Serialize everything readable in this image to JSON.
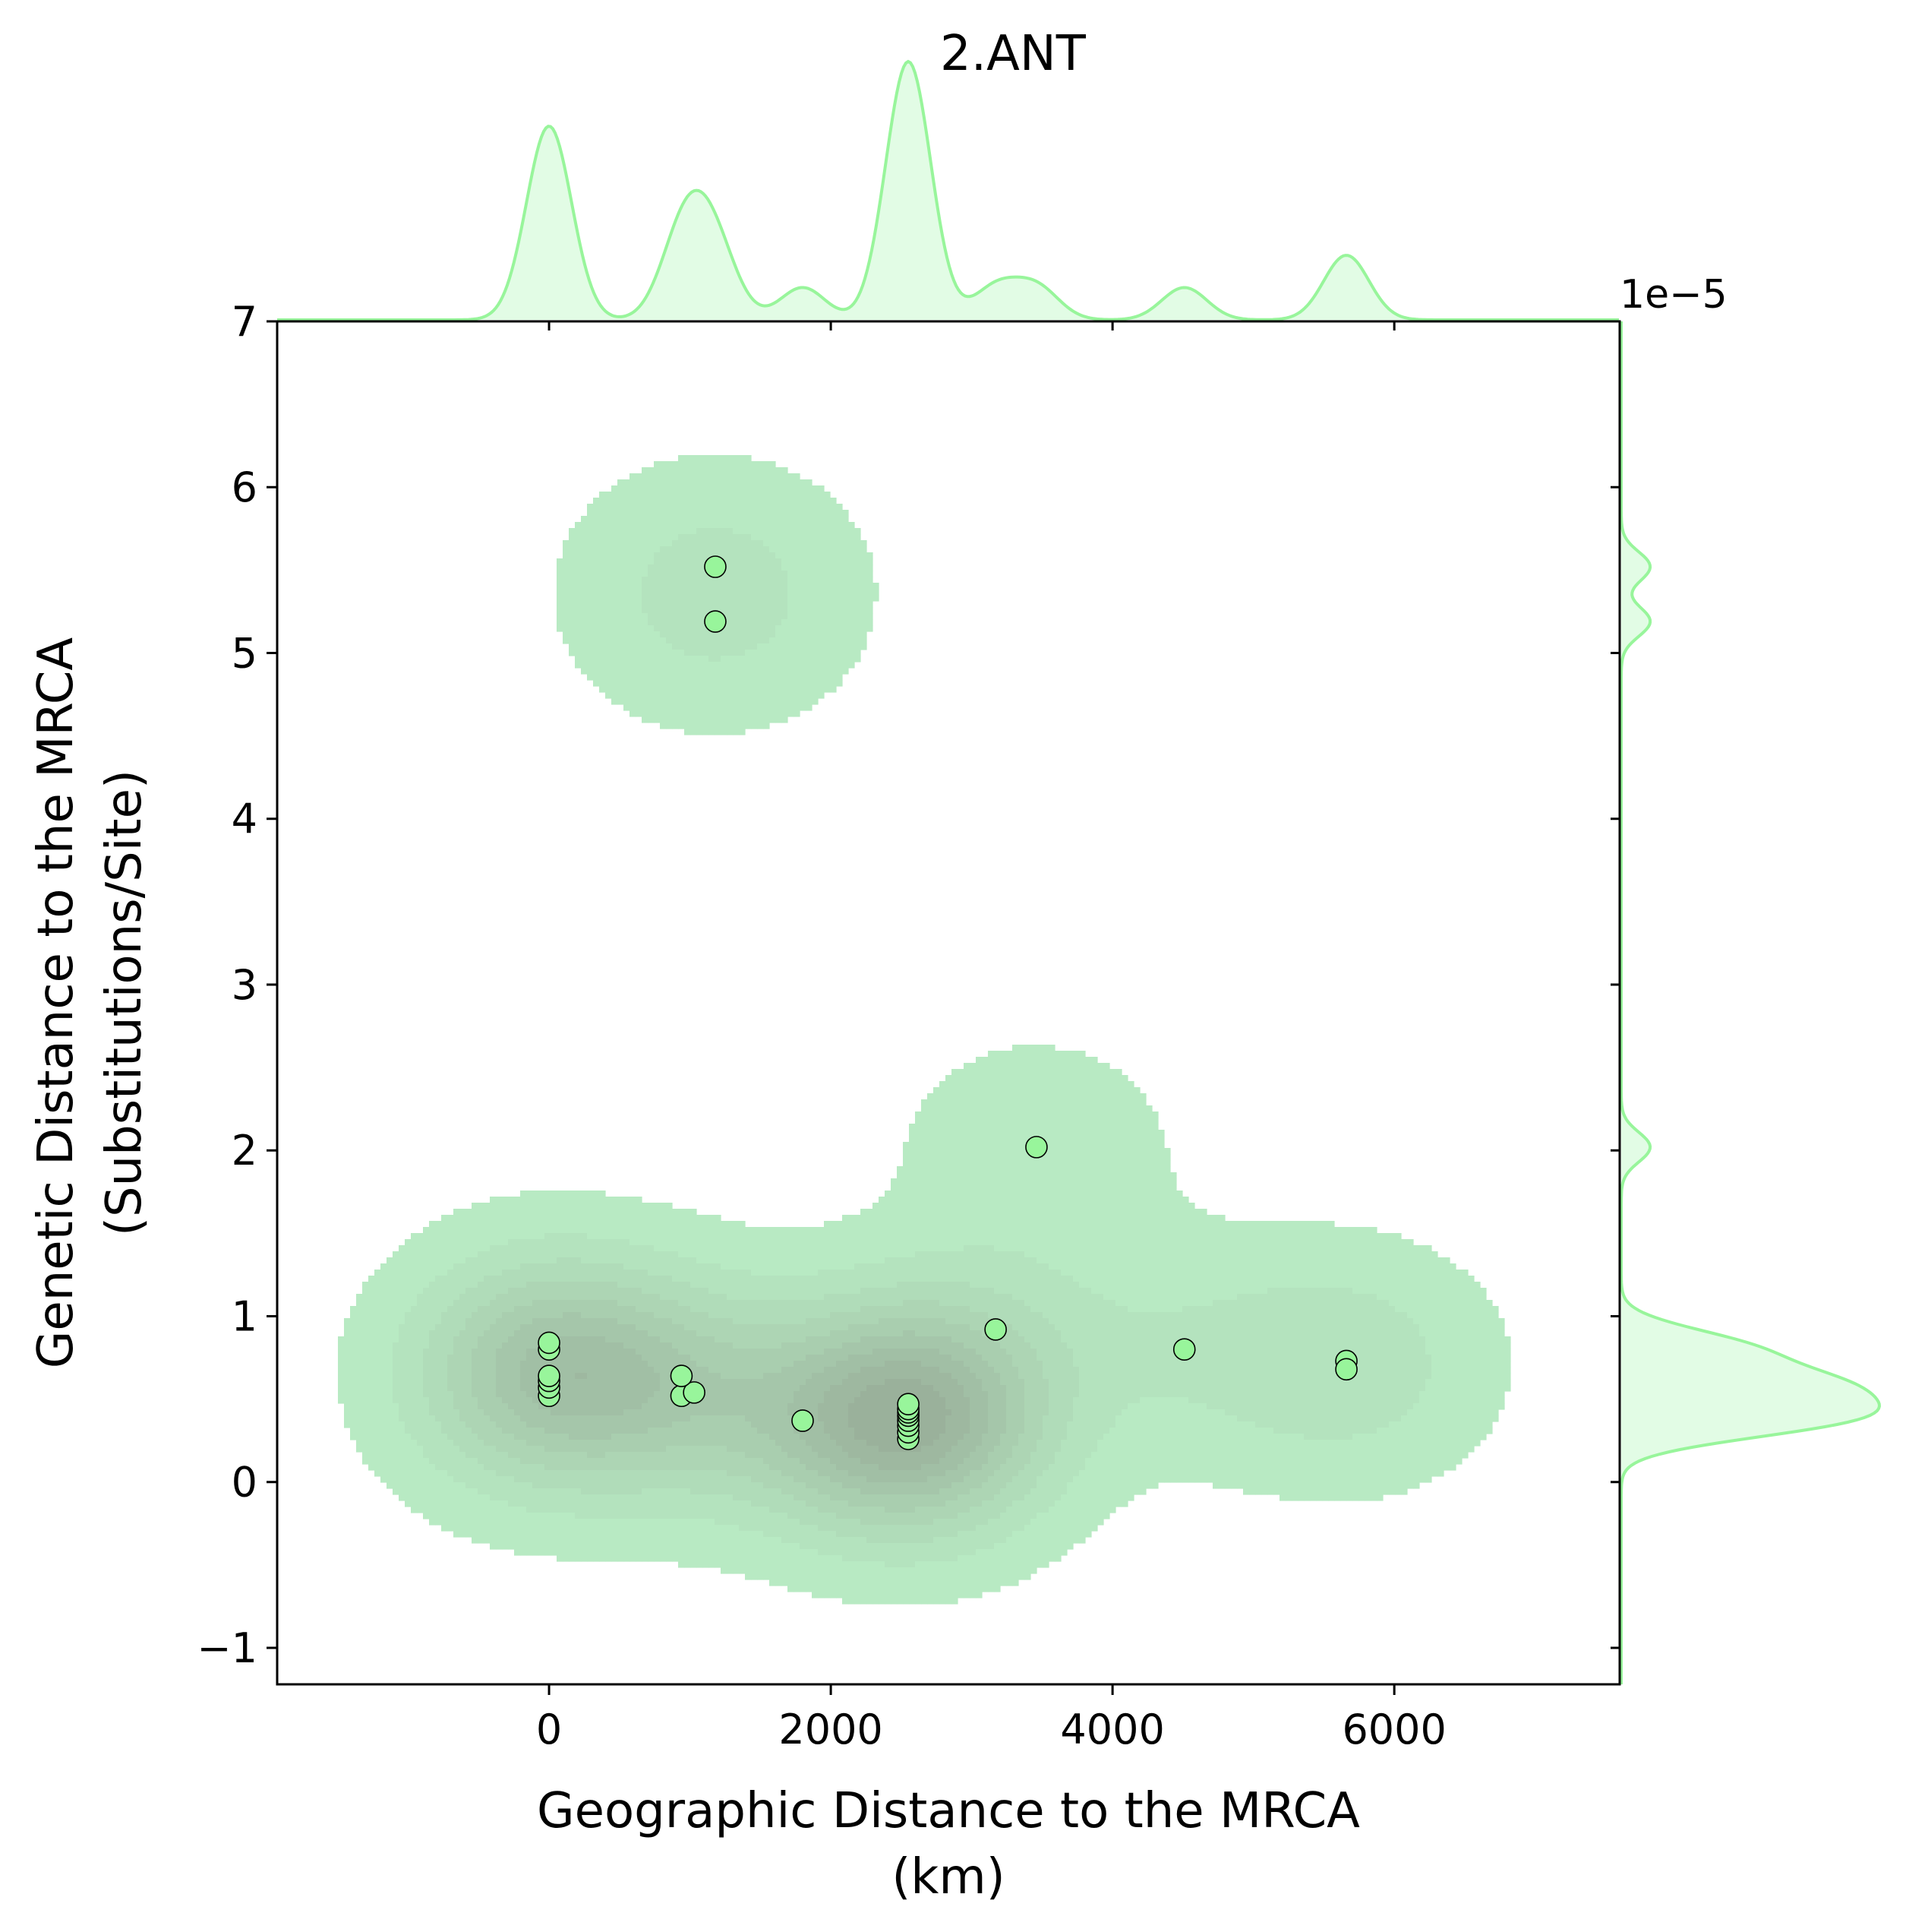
{
  "chart_data": {
    "type": "scatter",
    "title": "2.ANT",
    "xlabel_line1": "Geographic Distance to the MRCA",
    "xlabel_line2": "(km)",
    "ylabel_line1": "Genetic Distance to the MRCA",
    "ylabel_line2": "(Substitutions/Site)",
    "y_offset_label": "1e−5",
    "xlim": [
      -1930,
      7600
    ],
    "ylim": [
      -1.22,
      7.0
    ],
    "x_ticks": [
      0,
      2000,
      4000,
      6000
    ],
    "x_tick_labels": [
      "0",
      "2000",
      "4000",
      "6000"
    ],
    "y_ticks": [
      -1,
      0,
      1,
      2,
      3,
      4,
      5,
      6,
      7
    ],
    "y_tick_labels": [
      "−1",
      "0",
      "1",
      "2",
      "3",
      "4",
      "5",
      "6",
      "7"
    ],
    "marginal_kde": true,
    "kde_contours": true,
    "grid": false,
    "colors": {
      "point_fill": "#98f59b",
      "point_edge": "#000000",
      "kde_fill": "#b8eac3",
      "marginal_line": "#98f59b",
      "marginal_fill": "#e2fce5"
    },
    "series": [
      {
        "points": [
          {
            "x": 0,
            "y": 0.52
          },
          {
            "x": 0,
            "y": 0.57
          },
          {
            "x": 0,
            "y": 0.61
          },
          {
            "x": 0,
            "y": 0.64
          },
          {
            "x": 0,
            "y": 0.8
          },
          {
            "x": 0,
            "y": 0.84
          },
          {
            "x": 940,
            "y": 0.52
          },
          {
            "x": 1030,
            "y": 0.54
          },
          {
            "x": 940,
            "y": 0.64
          },
          {
            "x": 1180,
            "y": 5.52
          },
          {
            "x": 1180,
            "y": 5.19
          },
          {
            "x": 1800,
            "y": 0.37
          },
          {
            "x": 2550,
            "y": 0.26
          },
          {
            "x": 2550,
            "y": 0.3
          },
          {
            "x": 2550,
            "y": 0.34
          },
          {
            "x": 2550,
            "y": 0.37
          },
          {
            "x": 2550,
            "y": 0.4
          },
          {
            "x": 2550,
            "y": 0.42
          },
          {
            "x": 2550,
            "y": 0.44
          },
          {
            "x": 2550,
            "y": 0.47
          },
          {
            "x": 3170,
            "y": 0.92
          },
          {
            "x": 3460,
            "y": 2.02
          },
          {
            "x": 4510,
            "y": 0.8
          },
          {
            "x": 5660,
            "y": 0.73
          },
          {
            "x": 5660,
            "y": 0.68
          }
        ]
      }
    ]
  }
}
